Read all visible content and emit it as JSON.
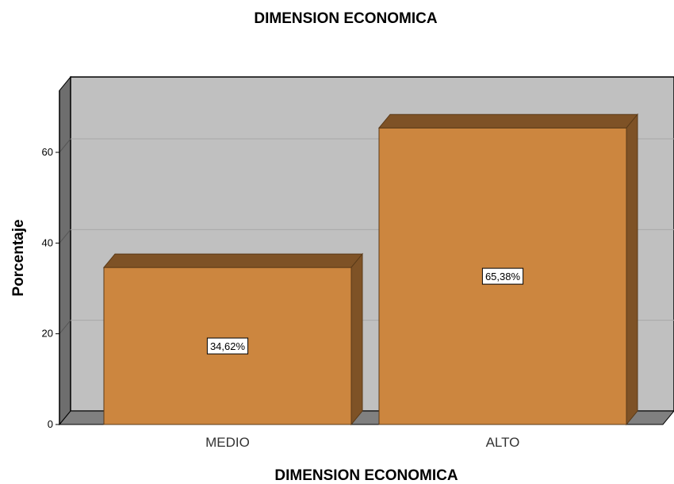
{
  "chart_data": {
    "type": "bar",
    "title": "DIMENSION ECONOMICA",
    "xlabel": "DIMENSION ECONOMICA",
    "ylabel": "Porcentaje",
    "categories": [
      "MEDIO",
      "ALTO"
    ],
    "values": [
      34.62,
      65.38
    ],
    "data_labels": [
      "34,62%",
      "65,38%"
    ],
    "yticks": [
      0,
      20,
      40,
      60
    ],
    "ylim": [
      0,
      70
    ],
    "grid": true,
    "legend": "none",
    "colors": {
      "bar_front": "#CC863F",
      "bar_top": "#7E5226",
      "bar_side": "#7E5226",
      "plot_back": "#C0C0C0",
      "wall_left": "#6E6E6E",
      "floor": "#808080",
      "gridline": "#A8A8A8"
    }
  }
}
